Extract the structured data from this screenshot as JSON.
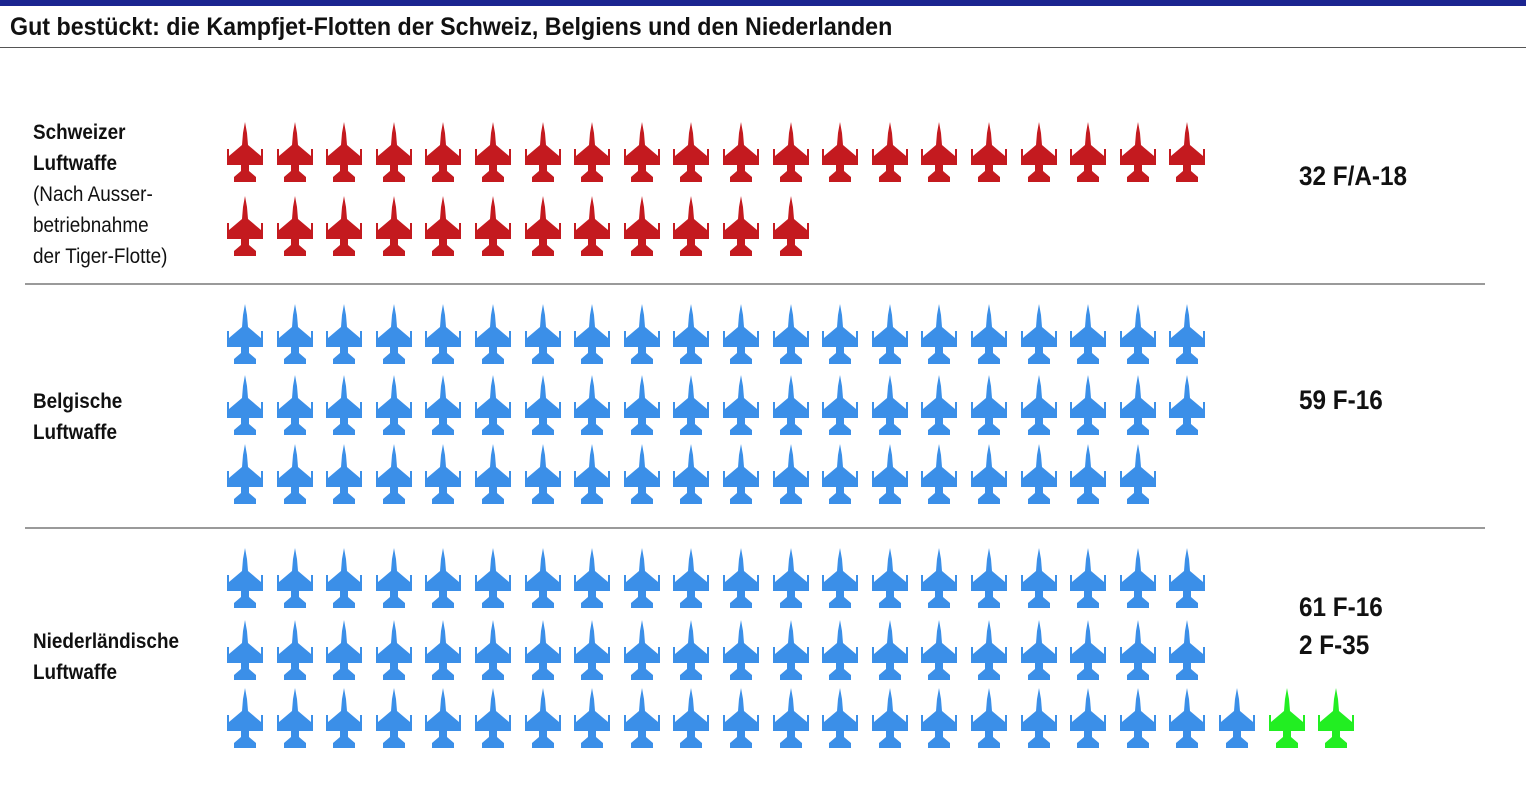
{
  "title": "Gut bestückt: die Kampfjet-Flotten der Schweiz, Belgiens und den Niederlanden",
  "chart_data": {
    "type": "pictogram",
    "title": "Gut bestückt: die Kampfjet-Flotten der Schweiz, Belgiens und den Niederlanden",
    "unit": "1 icon = 1 fighter jet",
    "groups": [
      {
        "name_lines": [
          "Schweizer",
          "Luftwaffe"
        ],
        "note_lines": [
          "(Nach Ausser-",
          "betriebnahme",
          "der Tiger-Flotte)"
        ],
        "value_lines": [
          "32 F/A-18"
        ],
        "series": [
          {
            "type": "F/A-18",
            "count": 32,
            "color": "#c41a1f"
          }
        ]
      },
      {
        "name_lines": [
          "Belgische",
          "Luftwaffe"
        ],
        "note_lines": [],
        "value_lines": [
          "59 F-16"
        ],
        "series": [
          {
            "type": "F-16",
            "count": 59,
            "color": "#3b8fe8"
          }
        ]
      },
      {
        "name_lines": [
          "Niederländische",
          "Luftwaffe"
        ],
        "note_lines": [],
        "value_lines": [
          "61 F-16",
          "2 F-35"
        ],
        "series": [
          {
            "type": "F-16",
            "count": 61,
            "color": "#3b8fe8"
          },
          {
            "type": "F-35",
            "count": 2,
            "color": "#22ee22"
          }
        ]
      }
    ]
  }
}
